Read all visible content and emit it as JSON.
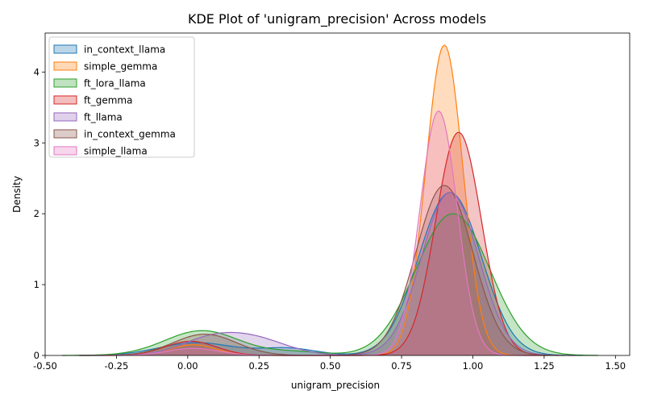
{
  "chart_data": {
    "type": "area",
    "title": "KDE Plot of 'unigram_precision' Across models",
    "xlabel": "unigram_precision",
    "ylabel": "Density",
    "xlim": [
      -0.5,
      1.55
    ],
    "ylim": [
      0,
      4.55
    ],
    "xticks": [
      "-0.50",
      "-0.25",
      "0.00",
      "0.25",
      "0.50",
      "0.75",
      "1.00",
      "1.25",
      "1.50"
    ],
    "xtick_values": [
      -0.5,
      -0.25,
      0.0,
      0.25,
      0.5,
      0.75,
      1.0,
      1.25,
      1.5
    ],
    "yticks": [
      "0",
      "1",
      "2",
      "3",
      "4"
    ],
    "ytick_values": [
      0,
      1,
      2,
      3,
      4
    ],
    "grid": false,
    "legend_position": "top-left",
    "series": [
      {
        "name": "in_context_llama",
        "color": "#1f77b4",
        "range": [
          -0.38,
          1.38
        ],
        "components": [
          {
            "mean": 0.03,
            "sd": 0.13,
            "amp": 0.18
          },
          {
            "mean": 0.35,
            "sd": 0.1,
            "amp": 0.1
          },
          {
            "mean": 0.92,
            "sd": 0.11,
            "amp": 2.3
          }
        ]
      },
      {
        "name": "simple_gemma",
        "color": "#ff7f0e",
        "range": [
          -0.28,
          1.26
        ],
        "components": [
          {
            "mean": 0.02,
            "sd": 0.08,
            "amp": 0.15
          },
          {
            "mean": 0.9,
            "sd": 0.065,
            "amp": 4.38
          }
        ]
      },
      {
        "name": "ft_lora_llama",
        "color": "#2ca02c",
        "range": [
          -0.44,
          1.44
        ],
        "components": [
          {
            "mean": 0.05,
            "sd": 0.13,
            "amp": 0.35
          },
          {
            "mean": 0.38,
            "sd": 0.1,
            "amp": 0.05
          },
          {
            "mean": 0.93,
            "sd": 0.13,
            "amp": 2.0
          }
        ]
      },
      {
        "name": "ft_gemma",
        "color": "#d62728",
        "range": [
          -0.3,
          1.3
        ],
        "components": [
          {
            "mean": 0.01,
            "sd": 0.09,
            "amp": 0.2
          },
          {
            "mean": 0.95,
            "sd": 0.08,
            "amp": 3.15
          }
        ]
      },
      {
        "name": "ft_llama",
        "color": "#9467bd",
        "range": [
          -0.38,
          1.36
        ],
        "components": [
          {
            "mean": 0.06,
            "sd": 0.1,
            "amp": 0.17
          },
          {
            "mean": 0.22,
            "sd": 0.12,
            "amp": 0.25
          },
          {
            "mean": 0.92,
            "sd": 0.1,
            "amp": 2.3
          }
        ]
      },
      {
        "name": "in_context_gemma",
        "color": "#8c564b",
        "range": [
          -0.38,
          1.32
        ],
        "components": [
          {
            "mean": 0.06,
            "sd": 0.11,
            "amp": 0.3
          },
          {
            "mean": 0.9,
            "sd": 0.1,
            "amp": 2.4
          }
        ]
      },
      {
        "name": "simple_llama",
        "color": "#e377c2",
        "range": [
          -0.3,
          1.25
        ],
        "components": [
          {
            "mean": 0.02,
            "sd": 0.09,
            "amp": 0.1
          },
          {
            "mean": 0.88,
            "sd": 0.065,
            "amp": 3.45
          }
        ]
      }
    ]
  }
}
